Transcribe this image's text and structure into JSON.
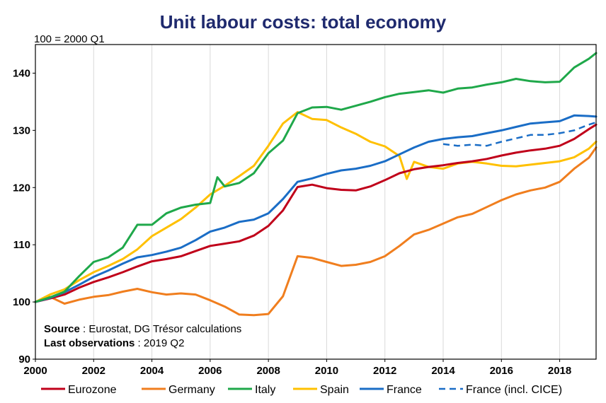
{
  "chart_data": {
    "type": "line",
    "title": "Unit labour costs: total economy",
    "unit_label": "100 = 2000 Q1",
    "xlim": [
      2000,
      2019.25
    ],
    "ylim": [
      90,
      145
    ],
    "x_ticks": [
      2000,
      2002,
      2004,
      2006,
      2008,
      2010,
      2012,
      2014,
      2016,
      2018
    ],
    "y_ticks": [
      90,
      100,
      110,
      120,
      130,
      140
    ],
    "grid": "vertical",
    "legend_position": "bottom",
    "source_label": "Source",
    "source_text": " : Eurostat, DG Trésor calculations",
    "last_obs_label": "Last observations",
    "last_obs_text": " : 2019 Q2",
    "series": [
      {
        "name": "Eurozone",
        "color": "#c0001a",
        "dash": "solid",
        "points": [
          [
            2000,
            100
          ],
          [
            2000.5,
            100.6
          ],
          [
            2001,
            101.3
          ],
          [
            2001.5,
            102.5
          ],
          [
            2002,
            103.5
          ],
          [
            2002.5,
            104.3
          ],
          [
            2003,
            105.2
          ],
          [
            2003.5,
            106.2
          ],
          [
            2004,
            107.1
          ],
          [
            2004.5,
            107.5
          ],
          [
            2005,
            108
          ],
          [
            2005.5,
            108.9
          ],
          [
            2006,
            109.8
          ],
          [
            2006.5,
            110.2
          ],
          [
            2007,
            110.6
          ],
          [
            2007.5,
            111.6
          ],
          [
            2008,
            113.3
          ],
          [
            2008.5,
            116
          ],
          [
            2009,
            120.1
          ],
          [
            2009.5,
            120.5
          ],
          [
            2010,
            119.9
          ],
          [
            2010.5,
            119.6
          ],
          [
            2011,
            119.5
          ],
          [
            2011.5,
            120.2
          ],
          [
            2012,
            121.3
          ],
          [
            2012.5,
            122.5
          ],
          [
            2013,
            123.2
          ],
          [
            2013.5,
            123.6
          ],
          [
            2014,
            123.9
          ],
          [
            2014.5,
            124.3
          ],
          [
            2015,
            124.6
          ],
          [
            2015.5,
            125
          ],
          [
            2016,
            125.6
          ],
          [
            2016.5,
            126.1
          ],
          [
            2017,
            126.5
          ],
          [
            2017.5,
            126.8
          ],
          [
            2018,
            127.3
          ],
          [
            2018.5,
            128.5
          ],
          [
            2019,
            130.2
          ],
          [
            2019.25,
            131
          ]
        ]
      },
      {
        "name": "Germany",
        "color": "#f07e1e",
        "dash": "solid",
        "points": [
          [
            2000,
            100
          ],
          [
            2000.5,
            100.9
          ],
          [
            2001,
            99.7
          ],
          [
            2001.5,
            100.4
          ],
          [
            2002,
            100.9
          ],
          [
            2002.5,
            101.2
          ],
          [
            2003,
            101.8
          ],
          [
            2003.5,
            102.3
          ],
          [
            2004,
            101.7
          ],
          [
            2004.5,
            101.3
          ],
          [
            2005,
            101.5
          ],
          [
            2005.5,
            101.3
          ],
          [
            2006,
            100.3
          ],
          [
            2006.5,
            99.2
          ],
          [
            2007,
            97.8
          ],
          [
            2007.5,
            97.7
          ],
          [
            2008,
            97.9
          ],
          [
            2008.5,
            101
          ],
          [
            2009,
            108
          ],
          [
            2009.5,
            107.7
          ],
          [
            2010,
            107
          ],
          [
            2010.5,
            106.3
          ],
          [
            2011,
            106.5
          ],
          [
            2011.5,
            107
          ],
          [
            2012,
            108
          ],
          [
            2012.5,
            109.8
          ],
          [
            2013,
            111.8
          ],
          [
            2013.5,
            112.6
          ],
          [
            2014,
            113.7
          ],
          [
            2014.5,
            114.8
          ],
          [
            2015,
            115.4
          ],
          [
            2015.5,
            116.6
          ],
          [
            2016,
            117.8
          ],
          [
            2016.5,
            118.8
          ],
          [
            2017,
            119.5
          ],
          [
            2017.5,
            120
          ],
          [
            2018,
            121
          ],
          [
            2018.5,
            123.3
          ],
          [
            2019,
            125.2
          ],
          [
            2019.25,
            127
          ]
        ]
      },
      {
        "name": "Italy",
        "color": "#1fa84a",
        "dash": "solid",
        "points": [
          [
            2000,
            100
          ],
          [
            2000.5,
            100.8
          ],
          [
            2001,
            101.8
          ],
          [
            2001.5,
            104.5
          ],
          [
            2002,
            107
          ],
          [
            2002.5,
            107.8
          ],
          [
            2003,
            109.5
          ],
          [
            2003.5,
            113.5
          ],
          [
            2004,
            113.5
          ],
          [
            2004.5,
            115.5
          ],
          [
            2005,
            116.5
          ],
          [
            2005.5,
            117
          ],
          [
            2006,
            117.3
          ],
          [
            2006.25,
            121.8
          ],
          [
            2006.5,
            120.2
          ],
          [
            2007,
            120.8
          ],
          [
            2007.5,
            122.5
          ],
          [
            2008,
            126
          ],
          [
            2008.5,
            128.2
          ],
          [
            2009,
            133
          ],
          [
            2009.5,
            134
          ],
          [
            2010,
            134.1
          ],
          [
            2010.5,
            133.6
          ],
          [
            2011,
            134.3
          ],
          [
            2011.5,
            135
          ],
          [
            2012,
            135.8
          ],
          [
            2012.5,
            136.4
          ],
          [
            2013,
            136.7
          ],
          [
            2013.5,
            137
          ],
          [
            2014,
            136.6
          ],
          [
            2014.5,
            137.3
          ],
          [
            2015,
            137.5
          ],
          [
            2015.5,
            138
          ],
          [
            2016,
            138.4
          ],
          [
            2016.5,
            139
          ],
          [
            2017,
            138.6
          ],
          [
            2017.5,
            138.4
          ],
          [
            2018,
            138.5
          ],
          [
            2018.5,
            141
          ],
          [
            2019,
            142.5
          ],
          [
            2019.25,
            143.5
          ]
        ]
      },
      {
        "name": "Spain",
        "color": "#ffc000",
        "dash": "solid",
        "points": [
          [
            2000,
            100
          ],
          [
            2000.5,
            101.3
          ],
          [
            2001,
            102.2
          ],
          [
            2001.5,
            103.8
          ],
          [
            2002,
            105.2
          ],
          [
            2002.5,
            106.3
          ],
          [
            2003,
            107.5
          ],
          [
            2003.5,
            109.2
          ],
          [
            2004,
            111.5
          ],
          [
            2004.5,
            113
          ],
          [
            2005,
            114.5
          ],
          [
            2005.5,
            116.5
          ],
          [
            2006,
            118.8
          ],
          [
            2006.5,
            120.3
          ],
          [
            2007,
            122
          ],
          [
            2007.5,
            123.8
          ],
          [
            2008,
            127.3
          ],
          [
            2008.5,
            131.2
          ],
          [
            2009,
            133.2
          ],
          [
            2009.5,
            132
          ],
          [
            2010,
            131.8
          ],
          [
            2010.5,
            130.5
          ],
          [
            2011,
            129.4
          ],
          [
            2011.5,
            128
          ],
          [
            2012,
            127.2
          ],
          [
            2012.5,
            125.5
          ],
          [
            2012.75,
            121.5
          ],
          [
            2013,
            124.5
          ],
          [
            2013.5,
            123.6
          ],
          [
            2014,
            123.3
          ],
          [
            2014.5,
            124.2
          ],
          [
            2015,
            124.5
          ],
          [
            2015.5,
            124.2
          ],
          [
            2016,
            123.8
          ],
          [
            2016.5,
            123.7
          ],
          [
            2017,
            124
          ],
          [
            2017.5,
            124.3
          ],
          [
            2018,
            124.6
          ],
          [
            2018.5,
            125.3
          ],
          [
            2019,
            126.8
          ],
          [
            2019.25,
            128
          ]
        ]
      },
      {
        "name": "France",
        "color": "#1a6dc6",
        "dash": "solid",
        "points": [
          [
            2000,
            100
          ],
          [
            2000.5,
            100.7
          ],
          [
            2001,
            101.7
          ],
          [
            2001.5,
            103
          ],
          [
            2002,
            104.4
          ],
          [
            2002.5,
            105.5
          ],
          [
            2003,
            106.7
          ],
          [
            2003.5,
            107.8
          ],
          [
            2004,
            108.2
          ],
          [
            2004.5,
            108.8
          ],
          [
            2005,
            109.5
          ],
          [
            2005.5,
            110.8
          ],
          [
            2006,
            112.3
          ],
          [
            2006.5,
            113
          ],
          [
            2007,
            114
          ],
          [
            2007.5,
            114.4
          ],
          [
            2008,
            115.5
          ],
          [
            2008.5,
            118
          ],
          [
            2009,
            121
          ],
          [
            2009.5,
            121.6
          ],
          [
            2010,
            122.4
          ],
          [
            2010.5,
            123
          ],
          [
            2011,
            123.3
          ],
          [
            2011.5,
            123.8
          ],
          [
            2012,
            124.6
          ],
          [
            2012.5,
            125.8
          ],
          [
            2013,
            127
          ],
          [
            2013.5,
            128
          ],
          [
            2014,
            128.5
          ],
          [
            2014.5,
            128.8
          ],
          [
            2015,
            129
          ],
          [
            2015.5,
            129.5
          ],
          [
            2016,
            130
          ],
          [
            2016.5,
            130.6
          ],
          [
            2017,
            131.2
          ],
          [
            2017.5,
            131.4
          ],
          [
            2018,
            131.6
          ],
          [
            2018.5,
            132.6
          ],
          [
            2019,
            132.5
          ],
          [
            2019.25,
            132.4
          ]
        ]
      },
      {
        "name": "France (incl. CICE)",
        "color": "#1a6dc6",
        "dash": "dashed",
        "points": [
          [
            2014,
            127.6
          ],
          [
            2014.5,
            127.3
          ],
          [
            2015,
            127.5
          ],
          [
            2015.5,
            127.3
          ],
          [
            2016,
            128
          ],
          [
            2016.5,
            128.6
          ],
          [
            2017,
            129.2
          ],
          [
            2017.5,
            129.2
          ],
          [
            2018,
            129.5
          ],
          [
            2018.5,
            130
          ],
          [
            2019,
            131
          ],
          [
            2019.25,
            131.4
          ]
        ]
      }
    ]
  }
}
